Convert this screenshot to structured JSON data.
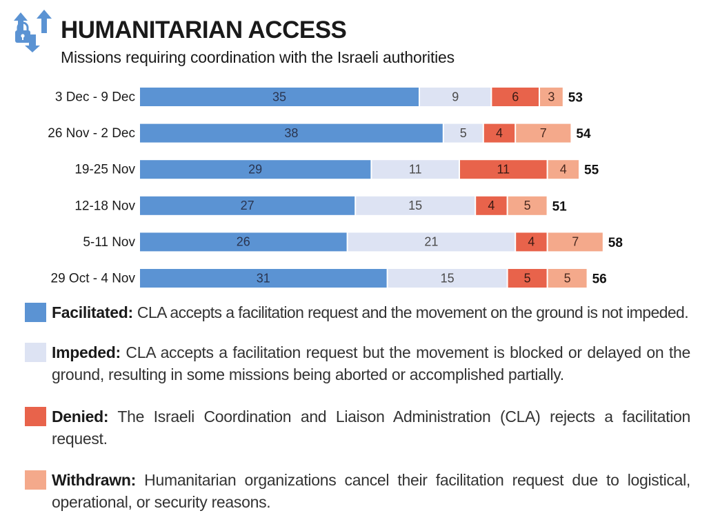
{
  "header": {
    "title": "HUMANITARIAN ACCESS",
    "subtitle": "Missions requiring coordination with the Israeli authorities",
    "icon": "access-arrows-lock-icon"
  },
  "colors": {
    "facilitated": "#5b93d3",
    "impeded": "#dde3f3",
    "denied": "#e8634b",
    "withdrawn": "#f4a98b",
    "icon": "#5b93d3"
  },
  "chart_data": {
    "type": "bar",
    "orientation": "horizontal",
    "stacked": true,
    "categories": [
      "3 Dec - 9 Dec",
      "26 Nov - 2 Dec",
      "19-25 Nov",
      "12-18 Nov",
      "5-11 Nov",
      "29 Oct - 4 Nov"
    ],
    "series": [
      {
        "name": "Facilitated",
        "values": [
          35,
          38,
          29,
          27,
          26,
          31
        ]
      },
      {
        "name": "Impeded",
        "values": [
          9,
          5,
          11,
          15,
          21,
          15
        ]
      },
      {
        "name": "Denied",
        "values": [
          6,
          4,
          11,
          4,
          4,
          5
        ]
      },
      {
        "name": "Withdrawn",
        "values": [
          3,
          7,
          4,
          5,
          7,
          5
        ]
      }
    ],
    "totals": [
      53,
      54,
      55,
      51,
      58,
      56
    ],
    "grid": false,
    "legend_position": "bottom"
  },
  "legend": [
    {
      "term": "Facilitated:",
      "text": "CLA accepts a facilitation request and the movement on the ground is not impeded."
    },
    {
      "term": "Impeded:",
      "text": "CLA accepts a facilitation request but the movement is blocked or delayed on the ground, resulting in some missions being aborted or accomplished partially."
    },
    {
      "term": "Denied:",
      "text": "The Israeli Coordination and Liaison Administration (CLA) rejects a facilitation request."
    },
    {
      "term": "Withdrawn:",
      "text": "Humanitarian organizations cancel their facilitation request due to logistical, operational, or security reasons."
    }
  ]
}
